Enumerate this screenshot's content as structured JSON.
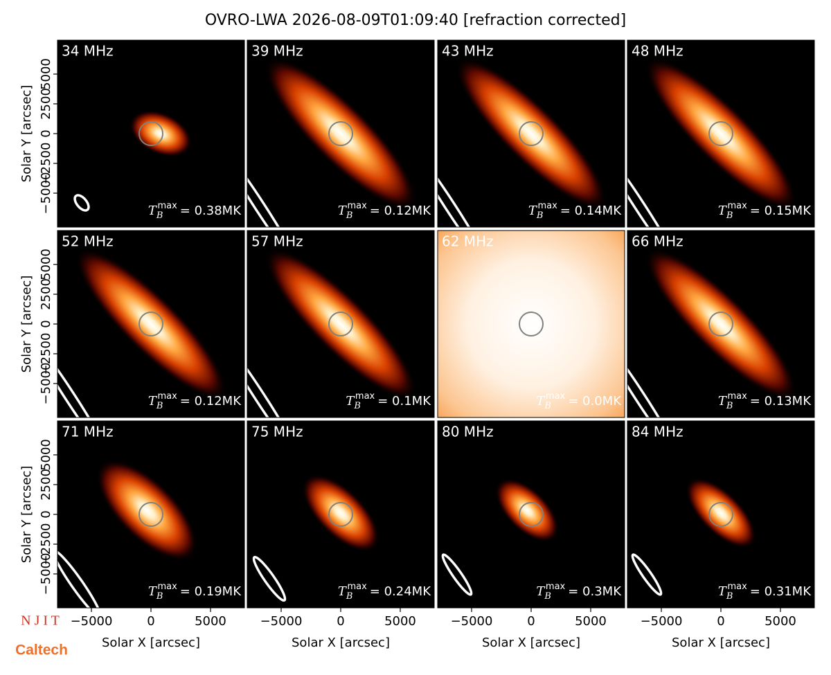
{
  "figure": {
    "title": "OVRO-LWA 2026-08-09T01:09:40 [refraction corrected]",
    "logos": [
      "N J I T",
      "Caltech"
    ]
  },
  "chart_data": [
    {
      "type": "heatmap",
      "title": "34 MHz",
      "tmax_symbol": {
        "base": "T",
        "sub": "B",
        "sup": "max"
      },
      "values": [
        0.38
      ],
      "value_labels": [
        "= 0.38MK"
      ],
      "xlim": [
        -7850,
        7850
      ],
      "ylim": [
        -7850,
        7850
      ],
      "ylabel": "Solar Y [arcsec]",
      "yticks": [
        {
          "value": -5000,
          "label": "−5000"
        },
        {
          "value": -2500,
          "label": "−2500"
        },
        0,
        2500,
        5000
      ]
    },
    {
      "type": "heatmap",
      "title": "39 MHz",
      "tmax_symbol": {
        "base": "T",
        "sub": "B",
        "sup": "max"
      },
      "values": [
        0.12
      ],
      "value_labels": [
        "= 0.12MK"
      ],
      "xlim": [
        -7850,
        7850
      ],
      "ylim": [
        -7850,
        7850
      ]
    },
    {
      "type": "heatmap",
      "title": "43 MHz",
      "tmax_symbol": {
        "base": "T",
        "sub": "B",
        "sup": "max"
      },
      "values": [
        0.14
      ],
      "value_labels": [
        "= 0.14MK"
      ],
      "xlim": [
        -7850,
        7850
      ],
      "ylim": [
        -7850,
        7850
      ]
    },
    {
      "type": "heatmap",
      "title": "48 MHz",
      "tmax_symbol": {
        "base": "T",
        "sub": "B",
        "sup": "max"
      },
      "values": [
        0.15
      ],
      "value_labels": [
        "= 0.15MK"
      ],
      "xlim": [
        -7850,
        7850
      ],
      "ylim": [
        -7850,
        7850
      ]
    },
    {
      "type": "heatmap",
      "title": "52 MHz",
      "tmax_symbol": {
        "base": "T",
        "sub": "B",
        "sup": "max"
      },
      "values": [
        0.12
      ],
      "value_labels": [
        "= 0.12MK"
      ],
      "xlim": [
        -7850,
        7850
      ],
      "ylim": [
        -7850,
        7850
      ],
      "ylabel": "Solar Y [arcsec]",
      "yticks": [
        {
          "value": -5000,
          "label": "−5000"
        },
        {
          "value": -2500,
          "label": "−2500"
        },
        0,
        2500,
        5000
      ]
    },
    {
      "type": "heatmap",
      "title": "57 MHz",
      "tmax_symbol": {
        "base": "T",
        "sub": "B",
        "sup": "max"
      },
      "values": [
        0.1
      ],
      "value_labels": [
        "= 0.1MK"
      ],
      "xlim": [
        -7850,
        7850
      ],
      "ylim": [
        -7850,
        7850
      ]
    },
    {
      "type": "heatmap",
      "title": "62 MHz",
      "tmax_symbol": {
        "base": "T",
        "sub": "B",
        "sup": "max"
      },
      "values": [
        0.0
      ],
      "value_labels": [
        "= 0.0MK"
      ],
      "xlim": [
        -7850,
        7850
      ],
      "ylim": [
        -7850,
        7850
      ],
      "saturated": true
    },
    {
      "type": "heatmap",
      "title": "66 MHz",
      "tmax_symbol": {
        "base": "T",
        "sub": "B",
        "sup": "max"
      },
      "values": [
        0.13
      ],
      "value_labels": [
        "= 0.13MK"
      ],
      "xlim": [
        -7850,
        7850
      ],
      "ylim": [
        -7850,
        7850
      ]
    },
    {
      "type": "heatmap",
      "title": "71 MHz",
      "tmax_symbol": {
        "base": "T",
        "sub": "B",
        "sup": "max"
      },
      "values": [
        0.19
      ],
      "value_labels": [
        "= 0.19MK"
      ],
      "xlim": [
        -7850,
        7850
      ],
      "ylim": [
        -7850,
        7850
      ],
      "ylabel": "Solar Y [arcsec]",
      "xlabel": "Solar X [arcsec]",
      "yticks": [
        {
          "value": -5000,
          "label": "−5000"
        },
        {
          "value": -2500,
          "label": "−2500"
        },
        0,
        2500,
        5000
      ],
      "xticks": [
        {
          "value": -5000,
          "label": "−5000"
        },
        0,
        5000
      ]
    },
    {
      "type": "heatmap",
      "title": "75 MHz",
      "tmax_symbol": {
        "base": "T",
        "sub": "B",
        "sup": "max"
      },
      "values": [
        0.24
      ],
      "value_labels": [
        "= 0.24MK"
      ],
      "xlim": [
        -7850,
        7850
      ],
      "ylim": [
        -7850,
        7850
      ],
      "xlabel": "Solar X [arcsec]",
      "xticks": [
        {
          "value": -5000,
          "label": "−5000"
        },
        0,
        5000
      ]
    },
    {
      "type": "heatmap",
      "title": "80 MHz",
      "tmax_symbol": {
        "base": "T",
        "sub": "B",
        "sup": "max"
      },
      "values": [
        0.3
      ],
      "value_labels": [
        "= 0.3MK"
      ],
      "xlim": [
        -7850,
        7850
      ],
      "ylim": [
        -7850,
        7850
      ],
      "xlabel": "Solar X [arcsec]",
      "xticks": [
        {
          "value": -5000,
          "label": "−5000"
        },
        0,
        5000
      ]
    },
    {
      "type": "heatmap",
      "title": "84 MHz",
      "tmax_symbol": {
        "base": "T",
        "sub": "B",
        "sup": "max"
      },
      "values": [
        0.31
      ],
      "value_labels": [
        "= 0.31MK"
      ],
      "xlim": [
        -7850,
        7850
      ],
      "ylim": [
        -7850,
        7850
      ],
      "xlabel": "Solar X [arcsec]",
      "xticks": [
        {
          "value": -5000,
          "label": "−5000"
        },
        0,
        5000
      ]
    }
  ]
}
